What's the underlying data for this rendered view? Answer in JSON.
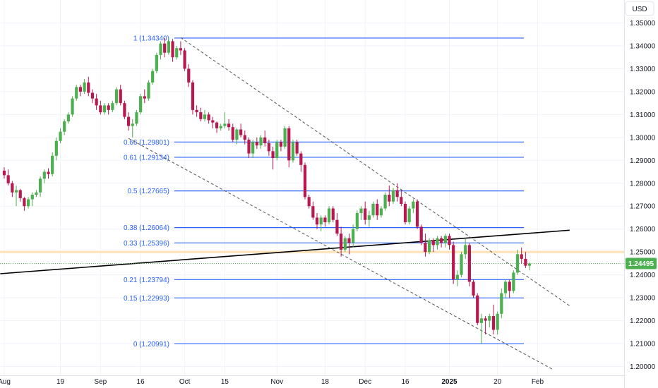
{
  "currency_label": "USD",
  "price_tag": {
    "text": "1.24495",
    "value": 1.24495,
    "color": "#4caf50"
  },
  "colors": {
    "up": "#4caf50",
    "down": "#b7184f",
    "fib": "#2962ff",
    "trend": "#000000",
    "channel": "#555555",
    "highlight": "#ffe0b2",
    "grid": "#f0f3fa"
  },
  "chart_data": {
    "type": "candlestick",
    "y_ticks": [
      "1.35000",
      "1.34000",
      "1.33000",
      "1.32000",
      "1.31000",
      "1.30000",
      "1.29000",
      "1.28000",
      "1.27000",
      "1.26000",
      "1.25000",
      "1.24000",
      "1.23000",
      "1.22000",
      "1.21000",
      "1.20000"
    ],
    "ylim": [
      1.195,
      1.355
    ],
    "x_ticks": [
      {
        "label": "Aug",
        "bar": 0,
        "bold": false
      },
      {
        "label": "19",
        "bar": 14,
        "bold": false
      },
      {
        "label": "Sep",
        "bar": 24,
        "bold": false
      },
      {
        "label": "16",
        "bar": 34,
        "bold": false
      },
      {
        "label": "Oct",
        "bar": 45,
        "bold": false
      },
      {
        "label": "15",
        "bar": 55,
        "bold": false
      },
      {
        "label": "Nov",
        "bar": 68,
        "bold": false
      },
      {
        "label": "18",
        "bar": 80,
        "bold": false
      },
      {
        "label": "Dec",
        "bar": 90,
        "bold": false
      },
      {
        "label": "16",
        "bar": 100,
        "bold": false
      },
      {
        "label": "2025",
        "bar": 111,
        "bold": true
      },
      {
        "label": "20",
        "bar": 123,
        "bold": false
      },
      {
        "label": "Feb",
        "bar": 133,
        "bold": false
      }
    ],
    "fib_levels": [
      {
        "label": "1 (1.34340)",
        "value": 1.3434
      },
      {
        "label": "0.66 (1.29801)",
        "value": 1.29801
      },
      {
        "label": "0.61 (1.29134)",
        "value": 1.29134
      },
      {
        "label": "0.5 (1.27665)",
        "value": 1.27665
      },
      {
        "label": "0.38 (1.26064)",
        "value": 1.26064
      },
      {
        "label": "0.33 (1.25396)",
        "value": 1.25396
      },
      {
        "label": "0.21 (1.23794)",
        "value": 1.23794
      },
      {
        "label": "0.15 (1.22993)",
        "value": 1.22993
      },
      {
        "label": "0 (1.20991)",
        "value": 1.20991
      }
    ],
    "trendline": {
      "start": [
        -1,
        1.2405
      ],
      "end": [
        141,
        1.2595
      ]
    },
    "channel_upper": {
      "start": [
        44,
        1.3436
      ],
      "end": [
        141,
        1.2265
      ]
    },
    "channel_lower": {
      "start": [
        31,
        1.2996
      ],
      "end": [
        137,
        1.1985
      ]
    },
    "highlight_band": [
      1.2495,
      1.2505
    ],
    "last_price_line": 1.24495,
    "candles": [
      [
        1.2855,
        1.287,
        1.282,
        1.2835
      ],
      [
        1.2835,
        1.286,
        1.279,
        1.28
      ],
      [
        1.28,
        1.281,
        1.274,
        1.276
      ],
      [
        1.276,
        1.279,
        1.27,
        1.277
      ],
      [
        1.277,
        1.2775,
        1.272,
        1.2735
      ],
      [
        1.2735,
        1.274,
        1.268,
        1.27
      ],
      [
        1.27,
        1.274,
        1.269,
        1.273
      ],
      [
        1.273,
        1.276,
        1.27,
        1.275
      ],
      [
        1.275,
        1.277,
        1.274,
        1.276
      ],
      [
        1.276,
        1.283,
        1.274,
        1.282
      ],
      [
        1.282,
        1.286,
        1.28,
        1.285
      ],
      [
        1.285,
        1.2865,
        1.282,
        1.284
      ],
      [
        1.284,
        1.2935,
        1.283,
        1.292
      ],
      [
        1.292,
        1.3,
        1.29,
        1.2985
      ],
      [
        1.2985,
        1.304,
        1.2975,
        1.3025
      ],
      [
        1.3025,
        1.308,
        1.301,
        1.307
      ],
      [
        1.307,
        1.311,
        1.306,
        1.31
      ],
      [
        1.31,
        1.318,
        1.309,
        1.317
      ],
      [
        1.317,
        1.323,
        1.316,
        1.322
      ],
      [
        1.322,
        1.323,
        1.318,
        1.32
      ],
      [
        1.32,
        1.3255,
        1.319,
        1.324
      ],
      [
        1.324,
        1.3265,
        1.318,
        1.3195
      ],
      [
        1.3195,
        1.321,
        1.315,
        1.317
      ],
      [
        1.317,
        1.319,
        1.312,
        1.314
      ],
      [
        1.314,
        1.316,
        1.31,
        1.311
      ],
      [
        1.311,
        1.315,
        1.31,
        1.314
      ],
      [
        1.314,
        1.315,
        1.31,
        1.312
      ],
      [
        1.312,
        1.316,
        1.311,
        1.315
      ],
      [
        1.315,
        1.322,
        1.314,
        1.321
      ],
      [
        1.321,
        1.323,
        1.314,
        1.315
      ],
      [
        1.315,
        1.316,
        1.308,
        1.309
      ],
      [
        1.309,
        1.311,
        1.303,
        1.305
      ],
      [
        1.305,
        1.308,
        1.3,
        1.306
      ],
      [
        1.306,
        1.312,
        1.305,
        1.311
      ],
      [
        1.311,
        1.319,
        1.31,
        1.318
      ],
      [
        1.318,
        1.321,
        1.315,
        1.317
      ],
      [
        1.317,
        1.325,
        1.316,
        1.324
      ],
      [
        1.324,
        1.33,
        1.323,
        1.329
      ],
      [
        1.329,
        1.337,
        1.328,
        1.336
      ],
      [
        1.336,
        1.342,
        1.334,
        1.341
      ],
      [
        1.341,
        1.3434,
        1.335,
        1.337
      ],
      [
        1.337,
        1.343,
        1.336,
        1.342
      ],
      [
        1.342,
        1.343,
        1.333,
        1.335
      ],
      [
        1.335,
        1.34,
        1.334,
        1.339
      ],
      [
        1.339,
        1.342,
        1.336,
        1.338
      ],
      [
        1.338,
        1.339,
        1.329,
        1.33
      ],
      [
        1.33,
        1.332,
        1.322,
        1.324
      ],
      [
        1.324,
        1.325,
        1.31,
        1.312
      ],
      [
        1.312,
        1.314,
        1.309,
        1.311
      ],
      [
        1.311,
        1.313,
        1.307,
        1.308
      ],
      [
        1.308,
        1.312,
        1.307,
        1.31
      ],
      [
        1.31,
        1.311,
        1.306,
        1.3075
      ],
      [
        1.3075,
        1.309,
        1.304,
        1.3065
      ],
      [
        1.3065,
        1.307,
        1.302,
        1.304
      ],
      [
        1.304,
        1.306,
        1.303,
        1.305
      ],
      [
        1.305,
        1.311,
        1.304,
        1.306
      ],
      [
        1.306,
        1.308,
        1.303,
        1.3045
      ],
      [
        1.3045,
        1.306,
        1.298,
        1.299
      ],
      [
        1.299,
        1.304,
        1.297,
        1.3035
      ],
      [
        1.3035,
        1.306,
        1.3,
        1.301
      ],
      [
        1.301,
        1.303,
        1.297,
        1.299
      ],
      [
        1.299,
        1.3,
        1.291,
        1.293
      ],
      [
        1.293,
        1.299,
        1.291,
        1.298
      ],
      [
        1.298,
        1.3,
        1.295,
        1.2965
      ],
      [
        1.2965,
        1.301,
        1.295,
        1.3
      ],
      [
        1.3,
        1.303,
        1.296,
        1.2975
      ],
      [
        1.2975,
        1.299,
        1.292,
        1.294
      ],
      [
        1.294,
        1.296,
        1.286,
        1.291
      ],
      [
        1.291,
        1.299,
        1.29,
        1.298
      ],
      [
        1.298,
        1.299,
        1.294,
        1.296
      ],
      [
        1.296,
        1.305,
        1.295,
        1.304
      ],
      [
        1.304,
        1.305,
        1.287,
        1.29
      ],
      [
        1.29,
        1.299,
        1.289,
        1.298
      ],
      [
        1.298,
        1.299,
        1.292,
        1.293
      ],
      [
        1.293,
        1.294,
        1.285,
        1.288
      ],
      [
        1.288,
        1.289,
        1.273,
        1.274
      ],
      [
        1.274,
        1.275,
        1.269,
        1.27
      ],
      [
        1.27,
        1.272,
        1.264,
        1.265
      ],
      [
        1.265,
        1.267,
        1.26,
        1.262
      ],
      [
        1.262,
        1.266,
        1.259,
        1.265
      ],
      [
        1.265,
        1.266,
        1.261,
        1.263
      ],
      [
        1.263,
        1.27,
        1.262,
        1.269
      ],
      [
        1.269,
        1.27,
        1.263,
        1.264
      ],
      [
        1.264,
        1.267,
        1.257,
        1.258
      ],
      [
        1.258,
        1.261,
        1.248,
        1.251
      ],
      [
        1.251,
        1.257,
        1.25,
        1.256
      ],
      [
        1.256,
        1.258,
        1.249,
        1.254
      ],
      [
        1.254,
        1.262,
        1.252,
        1.26
      ],
      [
        1.26,
        1.268,
        1.259,
        1.267
      ],
      [
        1.267,
        1.27,
        1.264,
        1.269
      ],
      [
        1.269,
        1.272,
        1.262,
        1.264
      ],
      [
        1.264,
        1.268,
        1.261,
        1.266
      ],
      [
        1.266,
        1.272,
        1.265,
        1.271
      ],
      [
        1.271,
        1.273,
        1.264,
        1.266
      ],
      [
        1.266,
        1.27,
        1.265,
        1.269
      ],
      [
        1.269,
        1.276,
        1.268,
        1.275
      ],
      [
        1.275,
        1.279,
        1.27,
        1.272
      ],
      [
        1.272,
        1.278,
        1.271,
        1.277
      ],
      [
        1.277,
        1.28,
        1.272,
        1.274
      ],
      [
        1.274,
        1.277,
        1.27,
        1.271
      ],
      [
        1.271,
        1.272,
        1.262,
        1.263
      ],
      [
        1.263,
        1.27,
        1.262,
        1.269
      ],
      [
        1.269,
        1.273,
        1.267,
        1.272
      ],
      [
        1.272,
        1.273,
        1.26,
        1.261
      ],
      [
        1.261,
        1.262,
        1.253,
        1.254
      ],
      [
        1.254,
        1.258,
        1.248,
        1.25
      ],
      [
        1.25,
        1.256,
        1.249,
        1.255
      ],
      [
        1.255,
        1.256,
        1.25,
        1.253
      ],
      [
        1.253,
        1.257,
        1.251,
        1.256
      ],
      [
        1.256,
        1.257,
        1.252,
        1.254
      ],
      [
        1.254,
        1.258,
        1.252,
        1.257
      ],
      [
        1.257,
        1.258,
        1.251,
        1.253
      ],
      [
        1.253,
        1.2545,
        1.236,
        1.238
      ],
      [
        1.238,
        1.242,
        1.235,
        1.24
      ],
      [
        1.24,
        1.25,
        1.239,
        1.249
      ],
      [
        1.249,
        1.256,
        1.247,
        1.253
      ],
      [
        1.253,
        1.254,
        1.235,
        1.237
      ],
      [
        1.237,
        1.238,
        1.23,
        1.231
      ],
      [
        1.231,
        1.232,
        1.218,
        1.219
      ],
      [
        1.219,
        1.223,
        1.2099,
        1.221
      ],
      [
        1.221,
        1.222,
        1.214,
        1.22
      ],
      [
        1.22,
        1.223,
        1.217,
        1.222
      ],
      [
        1.222,
        1.227,
        1.214,
        1.216
      ],
      [
        1.216,
        1.224,
        1.214,
        1.223
      ],
      [
        1.223,
        1.234,
        1.221,
        1.232
      ],
      [
        1.232,
        1.238,
        1.23,
        1.237
      ],
      [
        1.237,
        1.238,
        1.23,
        1.233
      ],
      [
        1.233,
        1.242,
        1.232,
        1.241
      ],
      [
        1.241,
        1.251,
        1.24,
        1.249
      ],
      [
        1.249,
        1.252,
        1.245,
        1.247
      ],
      [
        1.247,
        1.25,
        1.243,
        1.244
      ],
      [
        1.244,
        1.2455,
        1.242,
        1.24495
      ]
    ]
  }
}
